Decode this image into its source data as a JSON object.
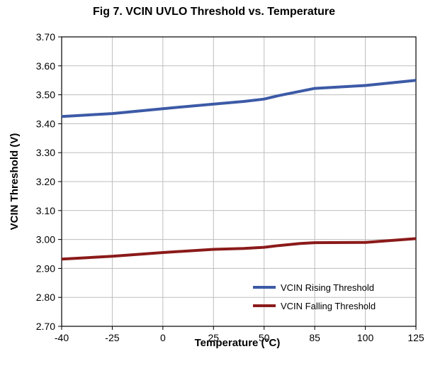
{
  "chart_data": {
    "type": "line",
    "title": "Fig 7.  VCIN UVLO Threshold vs. Temperature",
    "xlabel": "Temperature (°C)",
    "ylabel": "VCIN Threshold (V)",
    "x_tick_labels": [
      "-40",
      "-25",
      "0",
      "25",
      "50",
      "85",
      "100",
      "125"
    ],
    "y_ticks": [
      2.7,
      2.8,
      2.9,
      3.0,
      3.1,
      3.2,
      3.3,
      3.4,
      3.5,
      3.6,
      3.7
    ],
    "y_tick_labels": [
      "2.70",
      "2.80",
      "2.90",
      "3.00",
      "3.10",
      "3.20",
      "3.30",
      "3.40",
      "3.50",
      "3.60",
      "3.70"
    ],
    "ylim": [
      2.7,
      3.7
    ],
    "x": [
      -40,
      -25,
      0,
      25,
      40,
      50,
      60,
      75,
      85,
      100,
      125
    ],
    "series": [
      {
        "name": "VCIN Rising Threshold",
        "color": "#3c5aa6",
        "values": [
          3.425,
          3.435,
          3.452,
          3.468,
          3.477,
          3.485,
          3.497,
          3.512,
          3.522,
          3.532,
          3.55
        ]
      },
      {
        "name": "VCIN Falling Threshold",
        "color": "#8b1a1a",
        "values": [
          2.932,
          2.942,
          2.955,
          2.966,
          2.969,
          2.973,
          2.979,
          2.986,
          2.989,
          2.99,
          3.003
        ]
      }
    ],
    "grid": true,
    "legend_position": "bottom-right"
  }
}
